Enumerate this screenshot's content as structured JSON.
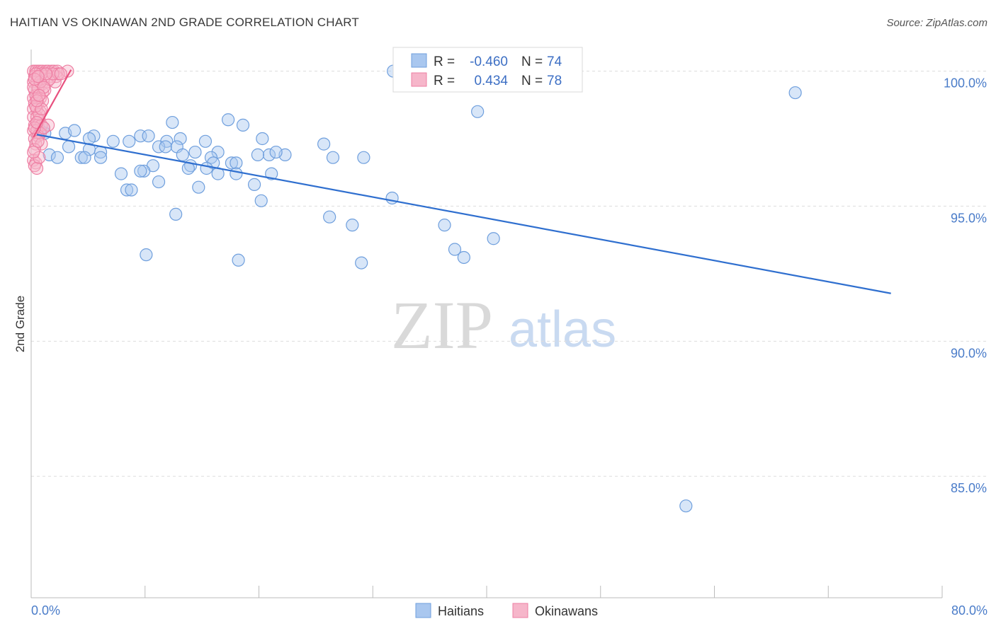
{
  "header": {
    "title": "HAITIAN VS OKINAWAN 2ND GRADE CORRELATION CHART",
    "source": "Source: ZipAtlas.com"
  },
  "watermark": {
    "zip": "ZIP",
    "atlas": "atlas"
  },
  "colors": {
    "haitian_fill": "#a9c7ef",
    "haitian_stroke": "#6f9fdd",
    "haitian_line": "#2f6fcf",
    "okinawan_fill": "#f6b6ca",
    "okinawan_stroke": "#ee7fa3",
    "okinawan_line": "#e8507e",
    "grid": "#dddddd",
    "tick_text": "#4a7cc9"
  },
  "legend": {
    "rows": [
      {
        "r_label": "R =",
        "r_value": "-0.460",
        "n_label": "N =",
        "n_value": "74",
        "series": "haitians"
      },
      {
        "r_label": "R =",
        "r_value": "0.434",
        "n_label": "N =",
        "n_value": "78",
        "series": "okinawans"
      }
    ]
  },
  "bottom_legend": {
    "haitians": "Haitians",
    "okinawans": "Okinawans"
  },
  "chart_data": {
    "type": "scatter",
    "title": "HAITIAN VS OKINAWAN 2ND GRADE CORRELATION CHART",
    "xlabel": "",
    "ylabel": "2nd Grade",
    "xlim": [
      0,
      80
    ],
    "ylim": [
      80.5,
      100.8
    ],
    "x_tick_labels": [
      "0.0%",
      "80.0%"
    ],
    "y_ticks": [
      100,
      95,
      90,
      85
    ],
    "y_tick_labels": [
      "100.0%",
      "95.0%",
      "90.0%",
      "85.0%"
    ],
    "grid": true,
    "legend_position": "top-center",
    "series": [
      {
        "name": "Haitians",
        "r": -0.46,
        "n": 74,
        "trend": {
          "x": [
            0.5,
            75.5
          ],
          "y": [
            97.65,
            91.77
          ]
        },
        "points": [
          [
            31.8,
            100.0
          ],
          [
            67.1,
            99.2
          ],
          [
            39.2,
            98.5
          ],
          [
            17.3,
            98.2
          ],
          [
            12.4,
            98.1
          ],
          [
            1.1,
            97.9
          ],
          [
            0.8,
            97.8
          ],
          [
            1.2,
            97.7
          ],
          [
            3.0,
            97.7
          ],
          [
            5.5,
            97.6
          ],
          [
            3.8,
            97.8
          ],
          [
            5.1,
            97.5
          ],
          [
            7.2,
            97.4
          ],
          [
            8.6,
            97.4
          ],
          [
            9.6,
            97.6
          ],
          [
            11.9,
            97.4
          ],
          [
            10.3,
            97.6
          ],
          [
            13.1,
            97.5
          ],
          [
            15.3,
            97.4
          ],
          [
            12.8,
            97.2
          ],
          [
            3.3,
            97.2
          ],
          [
            5.1,
            97.1
          ],
          [
            6.1,
            97.0
          ],
          [
            11.2,
            97.2
          ],
          [
            11.8,
            97.2
          ],
          [
            14.4,
            97.0
          ],
          [
            13.3,
            96.9
          ],
          [
            16.4,
            97.0
          ],
          [
            20.9,
            96.9
          ],
          [
            22.3,
            96.9
          ],
          [
            1.6,
            96.9
          ],
          [
            2.3,
            96.8
          ],
          [
            4.4,
            96.8
          ],
          [
            4.7,
            96.8
          ],
          [
            6.1,
            96.8
          ],
          [
            15.8,
            96.8
          ],
          [
            26.5,
            96.8
          ],
          [
            29.2,
            96.8
          ],
          [
            16.0,
            96.6
          ],
          [
            17.6,
            96.6
          ],
          [
            18.0,
            96.6
          ],
          [
            14.0,
            96.5
          ],
          [
            10.7,
            96.5
          ],
          [
            15.4,
            96.4
          ],
          [
            16.4,
            96.2
          ],
          [
            7.9,
            96.2
          ],
          [
            9.9,
            96.3
          ],
          [
            18.0,
            96.2
          ],
          [
            13.8,
            96.4
          ],
          [
            21.1,
            96.2
          ],
          [
            9.6,
            96.3
          ],
          [
            19.6,
            95.8
          ],
          [
            11.2,
            95.9
          ],
          [
            14.7,
            95.7
          ],
          [
            8.4,
            95.6
          ],
          [
            8.8,
            95.6
          ],
          [
            20.2,
            95.2
          ],
          [
            31.7,
            95.3
          ],
          [
            12.7,
            94.7
          ],
          [
            26.2,
            94.6
          ],
          [
            28.2,
            94.3
          ],
          [
            36.3,
            94.3
          ],
          [
            40.6,
            93.8
          ],
          [
            37.2,
            93.4
          ],
          [
            38.0,
            93.1
          ],
          [
            10.1,
            93.2
          ],
          [
            18.2,
            93.0
          ],
          [
            29.0,
            92.9
          ],
          [
            57.5,
            83.9
          ],
          [
            19.9,
            96.9
          ],
          [
            20.3,
            97.5
          ],
          [
            18.6,
            98.0
          ],
          [
            21.5,
            97.0
          ],
          [
            25.7,
            97.3
          ]
        ]
      },
      {
        "name": "Okinawans",
        "r": 0.434,
        "n": 78,
        "trend": {
          "x": [
            0.2,
            3.5
          ],
          "y": [
            97.55,
            100.05
          ]
        },
        "points": [
          [
            0.2,
            100.0
          ],
          [
            0.4,
            100.0
          ],
          [
            0.6,
            100.0
          ],
          [
            0.8,
            100.0
          ],
          [
            1.0,
            100.0
          ],
          [
            1.3,
            100.0
          ],
          [
            1.5,
            100.0
          ],
          [
            1.8,
            100.0
          ],
          [
            2.0,
            100.0
          ],
          [
            2.3,
            100.0
          ],
          [
            3.2,
            100.0
          ],
          [
            0.3,
            99.8
          ],
          [
            0.7,
            99.8
          ],
          [
            1.2,
            99.8
          ],
          [
            1.7,
            99.8
          ],
          [
            2.2,
            99.8
          ],
          [
            0.2,
            99.6
          ],
          [
            0.5,
            99.6
          ],
          [
            0.9,
            99.5
          ],
          [
            1.4,
            99.6
          ],
          [
            2.1,
            99.6
          ],
          [
            0.3,
            99.3
          ],
          [
            0.6,
            99.3
          ],
          [
            1.0,
            99.2
          ],
          [
            0.2,
            99.0
          ],
          [
            0.5,
            99.0
          ],
          [
            0.8,
            99.0
          ],
          [
            0.3,
            98.8
          ],
          [
            0.6,
            98.8
          ],
          [
            1.0,
            98.9
          ],
          [
            0.2,
            98.6
          ],
          [
            0.5,
            98.6
          ],
          [
            0.8,
            98.5
          ],
          [
            0.2,
            98.3
          ],
          [
            0.5,
            98.3
          ],
          [
            0.7,
            98.2
          ],
          [
            0.3,
            98.0
          ],
          [
            0.6,
            98.0
          ],
          [
            0.9,
            98.0
          ],
          [
            1.5,
            98.0
          ],
          [
            0.2,
            97.8
          ],
          [
            0.5,
            97.8
          ],
          [
            0.8,
            97.7
          ],
          [
            0.3,
            97.5
          ],
          [
            0.6,
            97.6
          ],
          [
            0.4,
            97.3
          ],
          [
            0.9,
            97.3
          ],
          [
            0.3,
            97.1
          ],
          [
            0.2,
            96.7
          ],
          [
            0.4,
            96.6
          ],
          [
            0.3,
            96.5
          ],
          [
            0.5,
            96.4
          ],
          [
            0.7,
            96.8
          ],
          [
            1.1,
            97.9
          ],
          [
            0.4,
            99.1
          ],
          [
            0.6,
            99.4
          ],
          [
            1.6,
            99.7
          ],
          [
            2.4,
            99.9
          ],
          [
            0.9,
            99.9
          ],
          [
            0.4,
            99.9
          ],
          [
            1.9,
            99.9
          ],
          [
            0.2,
            99.4
          ],
          [
            0.7,
            98.4
          ],
          [
            0.3,
            97.9
          ],
          [
            1.2,
            99.3
          ],
          [
            0.5,
            98.1
          ],
          [
            0.8,
            99.6
          ],
          [
            0.4,
            98.7
          ],
          [
            0.6,
            97.4
          ],
          [
            1.3,
            99.9
          ],
          [
            2.6,
            99.9
          ],
          [
            0.2,
            97.0
          ],
          [
            0.9,
            98.6
          ],
          [
            0.3,
            99.7
          ],
          [
            0.6,
            99.8
          ],
          [
            1.1,
            99.4
          ],
          [
            0.5,
            98.9
          ],
          [
            0.7,
            99.1
          ]
        ]
      }
    ]
  }
}
